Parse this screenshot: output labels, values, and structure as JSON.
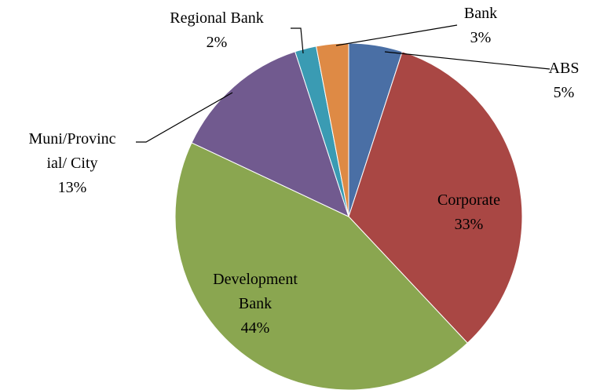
{
  "chart_data": {
    "type": "pie",
    "categories": [
      "ABS",
      "Corporate",
      "Development Bank",
      "Muni/Provincial/ City",
      "Regional Bank",
      "Bank"
    ],
    "values": [
      5,
      33,
      44,
      13,
      2,
      3
    ],
    "value_labels": [
      "5%",
      "33%",
      "44%",
      "13%",
      "2%",
      "3%"
    ],
    "colors": [
      "#4a6fa5",
      "#a94744",
      "#8aa650",
      "#715a8f",
      "#3a9bb3",
      "#de8a45"
    ]
  }
}
